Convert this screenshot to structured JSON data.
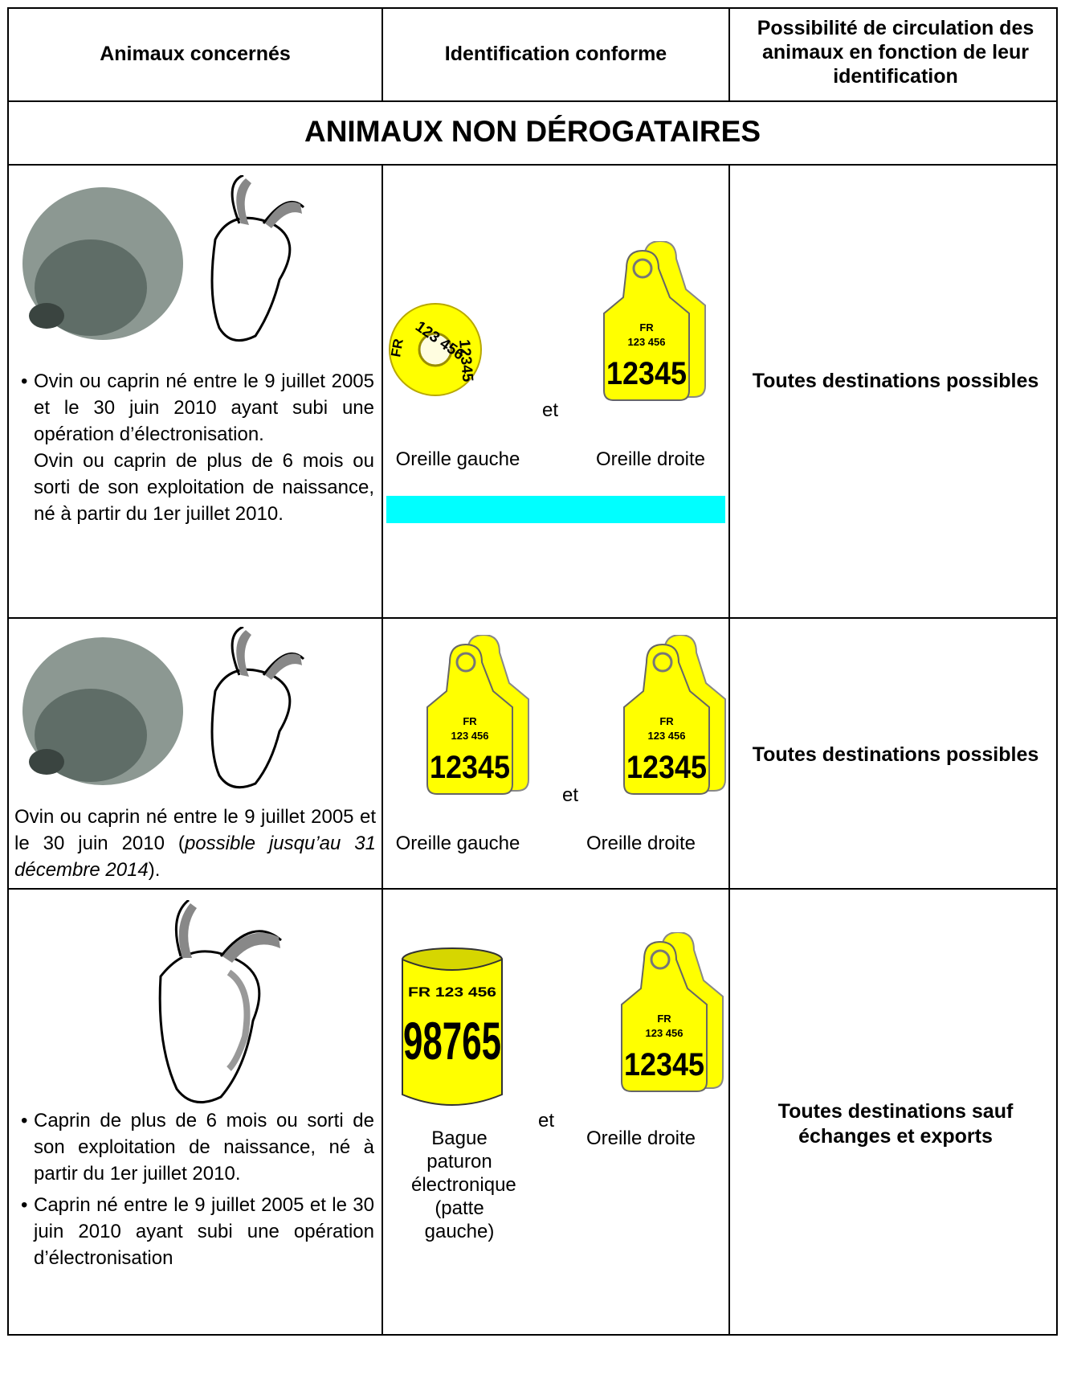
{
  "header": {
    "columns": [
      "Animaux concernés",
      "Identification conforme",
      "Possibilité de circulation des animaux en fonction de leur identification"
    ]
  },
  "section_title": "ANIMAUX NON DÉROGATAIRES",
  "rows": [
    {
      "animals": [
        {
          "bullet": true,
          "text": "Ovin ou caprin né entre le 9 juillet 2005 et le 30 juin 2010 ayant subi une opération d’électronisation."
        },
        {
          "bullet": false,
          "text": "Ovin ou caprin de plus de 6 mois ou sorti de son exploitation de naissance, né à partir du 1er juillet 2010."
        }
      ],
      "tags": [
        {
          "lines": [
            "FR",
            "123 456",
            "12345"
          ],
          "label": "Oreille gauche"
        },
        {
          "lines": [
            "FR",
            "123 456",
            "12345"
          ],
          "label": "Oreille droite"
        }
      ],
      "connector": "et",
      "destination": "Toutes destinations possibles"
    },
    {
      "animals": [
        {
          "parts": [
            "Ovin ou caprin né entre le 9 juillet 2005 et le 30 juin 2010 (",
            "possible jusqu’au 31 décembre 2014",
            ")."
          ]
        }
      ],
      "tags": [
        {
          "lines": [
            "FR",
            "123 456",
            "12345"
          ],
          "label": "Oreille gauche"
        },
        {
          "lines": [
            "FR",
            "123 456",
            "12345"
          ],
          "label": "Oreille droite"
        }
      ],
      "connector": "et",
      "destination": "Toutes destinations possibles"
    },
    {
      "animals": [
        {
          "bullet": true,
          "text": "Caprin de plus de 6 mois ou sorti de son exploitation de naissance, né à partir du 1er juillet 2010."
        },
        {
          "bullet": true,
          "text": "Caprin né entre le 9 juillet 2005 et le 30 juin 2010 ayant subi une opération d’électronisation"
        }
      ],
      "tags": [
        {
          "lines": [
            "FR 123 456",
            "98765"
          ],
          "label": "Bague paturon électronique (patte gauche)"
        },
        {
          "lines": [
            "FR",
            "123 456",
            "12345"
          ],
          "label": "Oreille droite"
        }
      ],
      "connector": "et",
      "destination": "Toutes destinations sauf échanges et exports"
    }
  ]
}
